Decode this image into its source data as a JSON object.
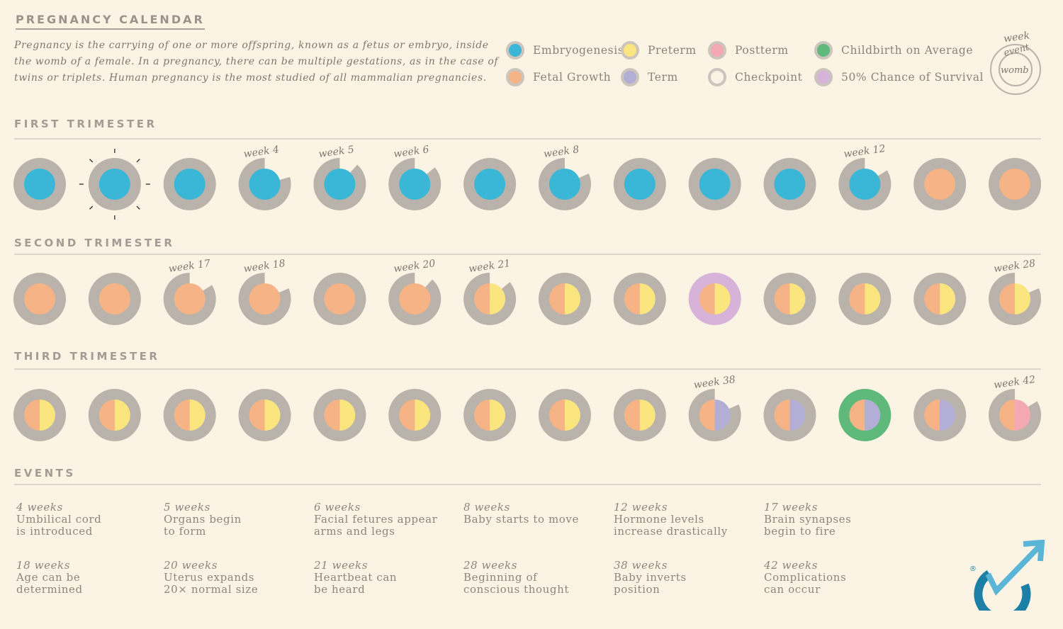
{
  "header": {
    "title": "PREGNANCY CALENDAR",
    "intro": "Pregnancy is the carrying of one or more offspring, known as a fetus or embryo, inside the womb of a female. In a pregnancy, there can be multiple gestations, as in the case of twins or triplets. Human pregnancy is the most studied of all mammalian pregnancies."
  },
  "colors": {
    "embryogenesis": "#3ab7d6",
    "fetal_growth": "#f6b386",
    "preterm": "#fbe57e",
    "term": "#b3aed6",
    "postterm": "#f4a8b2",
    "childbirth": "#5fb97a",
    "survival": "#d7b3d9",
    "ring": "#b9b3ab",
    "background": "#fbf4e4"
  },
  "legend": [
    {
      "label": "Embryogenesis",
      "color": "#3ab7d6",
      "ring": "#cbc5be"
    },
    {
      "label": "Preterm",
      "color": "#fbe57e",
      "ring": "#cbc5be"
    },
    {
      "label": "Postterm",
      "color": "#f4a8b2",
      "ring": "#cbc5be"
    },
    {
      "label": "Childbirth on Average",
      "color": "#5fb97a",
      "ring": "#cbc5be"
    },
    {
      "label": "Fetal Growth",
      "color": "#f6b386",
      "ring": "#cbc5be"
    },
    {
      "label": "Term",
      "color": "#b3aed6",
      "ring": "#cbc5be"
    },
    {
      "label": "Checkpoint",
      "color": "#fbf4e4",
      "ring": "#cbc5be"
    },
    {
      "label": "50% Chance of Survival",
      "color": "#d7b3d9",
      "ring": "#cbc5be"
    }
  ],
  "key": {
    "week": "week",
    "event": "event",
    "womb": "womb"
  },
  "sections": {
    "first": "FIRST TRIMESTER",
    "second": "SECOND TRIMESTER",
    "third": "THIRD TRIMESTER",
    "events": "EVENTS"
  },
  "trimesters": [
    {
      "name": "first",
      "weeks": [
        {
          "week": 1,
          "fill": "embryogenesis",
          "right": null,
          "ring": "ring"
        },
        {
          "week": 2,
          "fill": "embryogenesis",
          "right": null,
          "ring": "ring",
          "burst": true
        },
        {
          "week": 3,
          "fill": "embryogenesis",
          "right": null,
          "ring": "ring"
        },
        {
          "week": 4,
          "fill": "embryogenesis",
          "right": null,
          "ring": "ring",
          "label": "week 4",
          "gap": true
        },
        {
          "week": 5,
          "fill": "embryogenesis",
          "right": null,
          "ring": "ring",
          "label": "week 5",
          "gap": true
        },
        {
          "week": 6,
          "fill": "embryogenesis",
          "right": null,
          "ring": "ring",
          "label": "week 6",
          "gap": true
        },
        {
          "week": 7,
          "fill": "embryogenesis",
          "right": null,
          "ring": "ring"
        },
        {
          "week": 8,
          "fill": "embryogenesis",
          "right": null,
          "ring": "ring",
          "label": "week 8",
          "gap": true
        },
        {
          "week": 9,
          "fill": "embryogenesis",
          "right": null,
          "ring": "ring"
        },
        {
          "week": 10,
          "fill": "embryogenesis",
          "right": null,
          "ring": "ring"
        },
        {
          "week": 11,
          "fill": "embryogenesis",
          "right": null,
          "ring": "ring"
        },
        {
          "week": 12,
          "fill": "embryogenesis",
          "right": null,
          "ring": "ring",
          "label": "week 12",
          "gap": true
        },
        {
          "week": 13,
          "fill": "fetal_growth",
          "right": null,
          "ring": "ring"
        },
        {
          "week": 14,
          "fill": "fetal_growth",
          "right": null,
          "ring": "ring"
        }
      ]
    },
    {
      "name": "second",
      "weeks": [
        {
          "week": 15,
          "fill": "fetal_growth",
          "right": null,
          "ring": "ring"
        },
        {
          "week": 16,
          "fill": "fetal_growth",
          "right": null,
          "ring": "ring"
        },
        {
          "week": 17,
          "fill": "fetal_growth",
          "right": null,
          "ring": "ring",
          "label": "week 17",
          "gap": true
        },
        {
          "week": 18,
          "fill": "fetal_growth",
          "right": null,
          "ring": "ring",
          "label": "week 18",
          "gap": true
        },
        {
          "week": 19,
          "fill": "fetal_growth",
          "right": null,
          "ring": "ring"
        },
        {
          "week": 20,
          "fill": "fetal_growth",
          "right": null,
          "ring": "ring",
          "label": "week 20",
          "gap": true
        },
        {
          "week": 21,
          "fill": "fetal_growth",
          "right": "preterm",
          "ring": "ring",
          "label": "week 21",
          "gap": true
        },
        {
          "week": 22,
          "fill": "fetal_growth",
          "right": "preterm",
          "ring": "ring"
        },
        {
          "week": 23,
          "fill": "fetal_growth",
          "right": "preterm",
          "ring": "ring"
        },
        {
          "week": 24,
          "fill": "fetal_growth",
          "right": "preterm",
          "ring": "survival"
        },
        {
          "week": 25,
          "fill": "fetal_growth",
          "right": "preterm",
          "ring": "ring"
        },
        {
          "week": 26,
          "fill": "fetal_growth",
          "right": "preterm",
          "ring": "ring"
        },
        {
          "week": 27,
          "fill": "fetal_growth",
          "right": "preterm",
          "ring": "ring"
        },
        {
          "week": 28,
          "fill": "fetal_growth",
          "right": "preterm",
          "ring": "ring",
          "label": "week 28",
          "gap": true
        }
      ]
    },
    {
      "name": "third",
      "weeks": [
        {
          "week": 29,
          "fill": "fetal_growth",
          "right": "preterm",
          "ring": "ring"
        },
        {
          "week": 30,
          "fill": "fetal_growth",
          "right": "preterm",
          "ring": "ring"
        },
        {
          "week": 31,
          "fill": "fetal_growth",
          "right": "preterm",
          "ring": "ring"
        },
        {
          "week": 32,
          "fill": "fetal_growth",
          "right": "preterm",
          "ring": "ring"
        },
        {
          "week": 33,
          "fill": "fetal_growth",
          "right": "preterm",
          "ring": "ring"
        },
        {
          "week": 34,
          "fill": "fetal_growth",
          "right": "preterm",
          "ring": "ring"
        },
        {
          "week": 35,
          "fill": "fetal_growth",
          "right": "preterm",
          "ring": "ring"
        },
        {
          "week": 36,
          "fill": "fetal_growth",
          "right": "preterm",
          "ring": "ring"
        },
        {
          "week": 37,
          "fill": "fetal_growth",
          "right": "preterm",
          "ring": "ring"
        },
        {
          "week": 38,
          "fill": "fetal_growth",
          "right": "term",
          "ring": "ring",
          "label": "week 38",
          "gap": true
        },
        {
          "week": 39,
          "fill": "fetal_growth",
          "right": "term",
          "ring": "ring"
        },
        {
          "week": 40,
          "fill": "fetal_growth",
          "right": "term",
          "ring": "childbirth"
        },
        {
          "week": 41,
          "fill": "fetal_growth",
          "right": "term",
          "ring": "ring"
        },
        {
          "week": 42,
          "fill": "fetal_growth",
          "right": "postterm",
          "ring": "ring",
          "label": "week 42",
          "gap": true
        }
      ]
    }
  ],
  "events": [
    {
      "week": "4 weeks",
      "desc": "Umbilical cord\nis introduced"
    },
    {
      "week": "5 weeks",
      "desc": "Organs begin\nto form"
    },
    {
      "week": "6 weeks",
      "desc": "Facial fetures appear\narms and legs"
    },
    {
      "week": "8 weeks",
      "desc": "Baby starts to move"
    },
    {
      "week": "12 weeks",
      "desc": "Hormone levels\nincrease drastically"
    },
    {
      "week": "17 weeks",
      "desc": "Brain synapses\nbegin to fire"
    },
    {
      "week": "18 weeks",
      "desc": "Age can be\ndetermined"
    },
    {
      "week": "20 weeks",
      "desc": "Uterus expands\n20× normal size"
    },
    {
      "week": "21 weeks",
      "desc": "Heartbeat can\nbe heard"
    },
    {
      "week": "28 weeks",
      "desc": "Beginning of\nconscious thought"
    },
    {
      "week": "38 weeks",
      "desc": "Baby inverts\nposition"
    },
    {
      "week": "42 weeks",
      "desc": "Complications\ncan occur"
    }
  ],
  "logo": {
    "mark": "®",
    "color": "#1b7fa6",
    "accent": "#5ab5d6"
  }
}
